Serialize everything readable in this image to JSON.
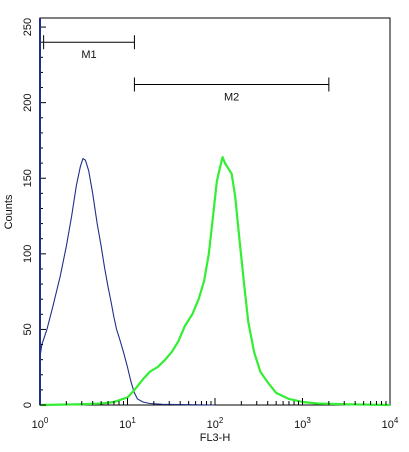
{
  "chart_data": {
    "type": "line",
    "xlabel": "FL3-H",
    "ylabel": "Counts",
    "xscale": "log",
    "xlim": [
      1,
      10000
    ],
    "ylim": [
      0,
      256
    ],
    "y_ticks": [
      0,
      50,
      100,
      150,
      200,
      250
    ],
    "x_ticks": [
      {
        "value": 1,
        "base": "10",
        "exp": "0"
      },
      {
        "value": 10,
        "base": "10",
        "exp": "1"
      },
      {
        "value": 100,
        "base": "10",
        "exp": "2"
      },
      {
        "value": 1000,
        "base": "10",
        "exp": "3"
      },
      {
        "value": 10000,
        "base": "10",
        "exp": "4"
      }
    ],
    "grid": false,
    "markers": [
      {
        "label": "M1",
        "x_start": 1.1,
        "x_end": 12,
        "y": 240
      },
      {
        "label": "M2",
        "x_start": 12,
        "x_end": 2000,
        "y": 212
      }
    ],
    "series": [
      {
        "color": "#1f2f8a",
        "points": [
          [
            1.0,
            32
          ],
          [
            1.05,
            40
          ],
          [
            1.2,
            50
          ],
          [
            1.4,
            65
          ],
          [
            1.7,
            85
          ],
          [
            2.0,
            105
          ],
          [
            2.3,
            125
          ],
          [
            2.6,
            145
          ],
          [
            2.9,
            158
          ],
          [
            3.1,
            163
          ],
          [
            3.3,
            162
          ],
          [
            3.6,
            155
          ],
          [
            4.0,
            140
          ],
          [
            4.5,
            120
          ],
          [
            5.0,
            105
          ],
          [
            5.5,
            90
          ],
          [
            6.0,
            78
          ],
          [
            6.5,
            68
          ],
          [
            7.0,
            58
          ],
          [
            7.5,
            50
          ],
          [
            8.0,
            45
          ],
          [
            9.0,
            35
          ],
          [
            10.0,
            25
          ],
          [
            11.0,
            15
          ],
          [
            12.0,
            8
          ],
          [
            13.0,
            4
          ],
          [
            15.0,
            2
          ],
          [
            18.0,
            1
          ],
          [
            25.0,
            0.5
          ],
          [
            40.0,
            0.3
          ],
          [
            100.0,
            0
          ]
        ]
      },
      {
        "color": "#33ee33",
        "points": [
          [
            1.0,
            0
          ],
          [
            3.0,
            0.5
          ],
          [
            5.0,
            1
          ],
          [
            7.0,
            2
          ],
          [
            10.0,
            5
          ],
          [
            12.0,
            10
          ],
          [
            15.0,
            17
          ],
          [
            18.0,
            22
          ],
          [
            22.0,
            25
          ],
          [
            27.0,
            30
          ],
          [
            32.0,
            35
          ],
          [
            38.0,
            42
          ],
          [
            45.0,
            52
          ],
          [
            55.0,
            60
          ],
          [
            65.0,
            70
          ],
          [
            75.0,
            82
          ],
          [
            85.0,
            100
          ],
          [
            95.0,
            125
          ],
          [
            105.0,
            148
          ],
          [
            115.0,
            158
          ],
          [
            122.0,
            164
          ],
          [
            130.0,
            160
          ],
          [
            140.0,
            157
          ],
          [
            155.0,
            153
          ],
          [
            170.0,
            138
          ],
          [
            190.0,
            110
          ],
          [
            215.0,
            80
          ],
          [
            240.0,
            55
          ],
          [
            280.0,
            35
          ],
          [
            330.0,
            22
          ],
          [
            400.0,
            15
          ],
          [
            500.0,
            8
          ],
          [
            700.0,
            4
          ],
          [
            1000.0,
            2
          ],
          [
            1500.0,
            1
          ],
          [
            3000.0,
            0.5
          ],
          [
            10000.0,
            0
          ]
        ]
      }
    ]
  }
}
